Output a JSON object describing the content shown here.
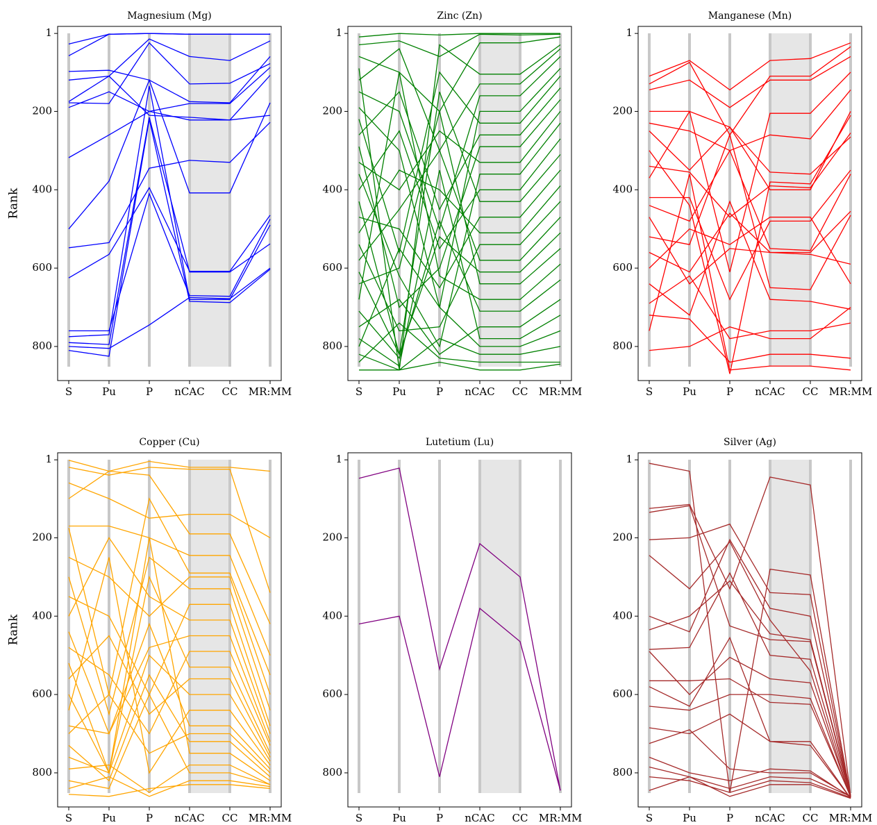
{
  "chart_data": [
    {
      "type": "parallel",
      "title": "Magnesium (Mg)",
      "y_label": "Rank",
      "color": "#0000ff",
      "inverted": true,
      "categories": [
        "S",
        "Pu",
        "P",
        "nCAC",
        "CC",
        "MR:MM"
      ],
      "ylim": [
        -17,
        887
      ],
      "yticks": [
        1,
        200,
        400,
        600,
        800
      ],
      "series": [
        {
          "values": [
            28,
            3,
            1,
            3,
            3,
            3
          ]
        },
        {
          "values": [
            58,
            3,
            1,
            3,
            3,
            3
          ]
        },
        {
          "values": [
            98,
            95,
            120,
            175,
            178,
            60
          ]
        },
        {
          "values": [
            120,
            110,
            15,
            60,
            70,
            20
          ]
        },
        {
          "values": [
            178,
            180,
            25,
            130,
            128,
            78
          ]
        },
        {
          "values": [
            190,
            150,
            200,
            180,
            180,
            88
          ]
        },
        {
          "values": [
            175,
            110,
            210,
            215,
            222,
            210
          ]
        },
        {
          "values": [
            318,
            260,
            200,
            222,
            222,
            108
          ]
        },
        {
          "values": [
            500,
            378,
            120,
            408,
            408,
            178
          ]
        },
        {
          "values": [
            548,
            535,
            345,
            325,
            330,
            228
          ]
        },
        {
          "values": [
            625,
            565,
            395,
            608,
            608,
            465
          ]
        },
        {
          "values": [
            760,
            760,
            410,
            670,
            672,
            475
          ]
        },
        {
          "values": [
            775,
            770,
            135,
            680,
            680,
            490
          ]
        },
        {
          "values": [
            790,
            795,
            215,
            610,
            610,
            538
          ]
        },
        {
          "values": [
            800,
            805,
            745,
            675,
            678,
            600
          ]
        },
        {
          "values": [
            810,
            825,
            220,
            685,
            688,
            603
          ]
        }
      ]
    },
    {
      "type": "parallel",
      "title": "Zinc (Zn)",
      "color": "#008000",
      "inverted": true,
      "categories": [
        "S",
        "Pu",
        "P",
        "nCAC",
        "CC",
        "MR:MM"
      ],
      "ylim": [
        -17,
        887
      ],
      "yticks": [
        1,
        200,
        400,
        600,
        800
      ],
      "series": [
        {
          "values": [
            10,
            1,
            5,
            1,
            1,
            1
          ]
        },
        {
          "values": [
            30,
            20,
            60,
            3,
            5,
            3
          ]
        },
        {
          "values": [
            60,
            100,
            200,
            25,
            25,
            10
          ]
        },
        {
          "values": [
            90,
            860,
            30,
            105,
            105,
            30
          ]
        },
        {
          "values": [
            120,
            40,
            300,
            130,
            130,
            40
          ]
        },
        {
          "values": [
            150,
            200,
            500,
            160,
            160,
            60
          ]
        },
        {
          "values": [
            190,
            300,
            700,
            200,
            200,
            90
          ]
        },
        {
          "values": [
            220,
            560,
            100,
            230,
            230,
            110
          ]
        },
        {
          "values": [
            260,
            150,
            450,
            260,
            260,
            140
          ]
        },
        {
          "values": [
            290,
            700,
            600,
            290,
            290,
            170
          ]
        },
        {
          "values": [
            330,
            400,
            250,
            330,
            330,
            200
          ]
        },
        {
          "values": [
            360,
            620,
            800,
            360,
            360,
            230
          ]
        },
        {
          "values": [
            400,
            250,
            550,
            400,
            400,
            270
          ]
        },
        {
          "values": [
            430,
            820,
            150,
            430,
            430,
            310
          ]
        },
        {
          "values": [
            470,
            500,
            650,
            470,
            470,
            350
          ]
        },
        {
          "values": [
            510,
            350,
            400,
            510,
            510,
            390
          ]
        },
        {
          "values": [
            540,
            760,
            750,
            540,
            540,
            430
          ]
        },
        {
          "values": [
            580,
            450,
            300,
            580,
            580,
            470
          ]
        },
        {
          "values": [
            610,
            820,
            520,
            610,
            610,
            510
          ]
        },
        {
          "values": [
            640,
            600,
            200,
            640,
            640,
            550
          ]
        },
        {
          "values": [
            680,
            100,
            620,
            680,
            680,
            590
          ]
        },
        {
          "values": [
            710,
            830,
            480,
            710,
            710,
            630
          ]
        },
        {
          "values": [
            750,
            680,
            820,
            750,
            750,
            680
          ]
        },
        {
          "values": [
            780,
            850,
            350,
            780,
            780,
            720
          ]
        },
        {
          "values": [
            800,
            550,
            700,
            800,
            800,
            760
          ]
        },
        {
          "values": [
            820,
            860,
            780,
            820,
            820,
            800
          ]
        },
        {
          "values": [
            840,
            740,
            830,
            840,
            840,
            840
          ]
        },
        {
          "values": [
            860,
            860,
            840,
            860,
            860,
            845
          ]
        }
      ]
    },
    {
      "type": "parallel",
      "title": "Manganese (Mn)",
      "color": "#ff0000",
      "inverted": true,
      "categories": [
        "S",
        "Pu",
        "P",
        "nCAC",
        "CC",
        "MR:MM"
      ],
      "ylim": [
        -17,
        887
      ],
      "yticks": [
        1,
        200,
        400,
        600,
        800
      ],
      "series": [
        {
          "values": [
            110,
            70,
            145,
            70,
            65,
            25
          ]
        },
        {
          "values": [
            130,
            75,
            260,
            110,
            110,
            35
          ]
        },
        {
          "values": [
            145,
            120,
            190,
            120,
            120,
            60
          ]
        },
        {
          "values": [
            200,
            200,
            610,
            205,
            205,
            100
          ]
        },
        {
          "values": [
            230,
            250,
            300,
            260,
            270,
            145
          ]
        },
        {
          "values": [
            250,
            350,
            240,
            400,
            400,
            200
          ]
        },
        {
          "values": [
            300,
            440,
            870,
            380,
            385,
            210
          ]
        },
        {
          "values": [
            340,
            355,
            470,
            390,
            395,
            255
          ]
        },
        {
          "values": [
            370,
            200,
            240,
            355,
            360,
            265
          ]
        },
        {
          "values": [
            420,
            420,
            680,
            480,
            480,
            350
          ]
        },
        {
          "values": [
            440,
            480,
            300,
            550,
            555,
            360
          ]
        },
        {
          "values": [
            470,
            640,
            550,
            560,
            560,
            455
          ]
        },
        {
          "values": [
            520,
            540,
            260,
            650,
            655,
            465
          ]
        },
        {
          "values": [
            560,
            610,
            460,
            560,
            565,
            590
          ]
        },
        {
          "values": [
            600,
            500,
            540,
            470,
            470,
            640
          ]
        },
        {
          "values": [
            640,
            720,
            430,
            680,
            685,
            705
          ]
        },
        {
          "values": [
            690,
            620,
            780,
            760,
            760,
            740
          ]
        },
        {
          "values": [
            720,
            730,
            840,
            820,
            820,
            830
          ]
        },
        {
          "values": [
            760,
            360,
            860,
            850,
            850,
            860
          ]
        },
        {
          "values": [
            810,
            800,
            750,
            780,
            780,
            700
          ]
        }
      ]
    },
    {
      "type": "parallel",
      "title": "Copper (Cu)",
      "y_label": "Rank",
      "color": "#ffa500",
      "inverted": true,
      "categories": [
        "S",
        "Pu",
        "P",
        "nCAC",
        "CC",
        "MR:MM"
      ],
      "ylim": [
        -17,
        887
      ],
      "yticks": [
        1,
        200,
        400,
        600,
        800
      ],
      "series": [
        {
          "values": [
            2,
            30,
            5,
            20,
            20,
            30
          ]
        },
        {
          "values": [
            20,
            40,
            20,
            25,
            25,
            340
          ]
        },
        {
          "values": [
            60,
            100,
            150,
            140,
            140,
            200
          ]
        },
        {
          "values": [
            100,
            30,
            40,
            190,
            190,
            420
          ]
        },
        {
          "values": [
            170,
            170,
            200,
            245,
            245,
            500
          ]
        },
        {
          "values": [
            175,
            600,
            100,
            290,
            290,
            550
          ]
        },
        {
          "values": [
            250,
            300,
            400,
            300,
            300,
            600
          ]
        },
        {
          "values": [
            300,
            650,
            250,
            330,
            330,
            640
          ]
        },
        {
          "values": [
            350,
            400,
            600,
            370,
            370,
            680
          ]
        },
        {
          "values": [
            400,
            200,
            350,
            410,
            410,
            700
          ]
        },
        {
          "values": [
            440,
            700,
            480,
            450,
            450,
            720
          ]
        },
        {
          "values": [
            480,
            550,
            700,
            490,
            490,
            730
          ]
        },
        {
          "values": [
            520,
            800,
            300,
            530,
            530,
            750
          ]
        },
        {
          "values": [
            560,
            450,
            650,
            560,
            560,
            760
          ]
        },
        {
          "values": [
            600,
            800,
            500,
            600,
            600,
            770
          ]
        },
        {
          "values": [
            640,
            250,
            800,
            640,
            640,
            780
          ]
        },
        {
          "values": [
            680,
            700,
            420,
            680,
            680,
            790
          ]
        },
        {
          "values": [
            700,
            600,
            750,
            700,
            700,
            800
          ]
        },
        {
          "values": [
            730,
            820,
            550,
            720,
            720,
            810
          ]
        },
        {
          "values": [
            760,
            800,
            200,
            750,
            750,
            820
          ]
        },
        {
          "values": [
            790,
            780,
            850,
            780,
            780,
            830
          ]
        },
        {
          "values": [
            820,
            840,
            600,
            800,
            800,
            830
          ]
        },
        {
          "values": [
            840,
            810,
            860,
            820,
            820,
            835
          ]
        },
        {
          "values": [
            855,
            860,
            840,
            830,
            830,
            840
          ]
        }
      ]
    },
    {
      "type": "parallel",
      "title": "Lutetium (Lu)",
      "color": "#800080",
      "inverted": true,
      "categories": [
        "S",
        "Pu",
        "P",
        "nCAC",
        "CC",
        "MR:MM"
      ],
      "ylim": [
        -17,
        887
      ],
      "yticks": [
        1,
        200,
        400,
        600,
        800
      ],
      "series": [
        {
          "values": [
            48,
            22,
            535,
            215,
            300,
            845
          ]
        },
        {
          "values": [
            420,
            400,
            810,
            380,
            465,
            845
          ]
        }
      ]
    },
    {
      "type": "parallel",
      "title": "Silver (Ag)",
      "color": "#a52a2a",
      "inverted": true,
      "categories": [
        "S",
        "Pu",
        "P",
        "nCAC",
        "CC",
        "MR:MM"
      ],
      "ylim": [
        -17,
        887
      ],
      "yticks": [
        1,
        200,
        400,
        600,
        800
      ],
      "series": [
        {
          "values": [
            10,
            30,
            850,
            280,
            295,
            860
          ]
        },
        {
          "values": [
            125,
            115,
            330,
            45,
            65,
            858
          ]
        },
        {
          "values": [
            135,
            118,
            425,
            460,
            465,
            860
          ]
        },
        {
          "values": [
            205,
            200,
            165,
            340,
            345,
            862
          ]
        },
        {
          "values": [
            245,
            330,
            210,
            410,
            540,
            865
          ]
        },
        {
          "values": [
            400,
            440,
            205,
            380,
            400,
            862
          ]
        },
        {
          "values": [
            435,
            400,
            310,
            445,
            460,
            858
          ]
        },
        {
          "values": [
            485,
            480,
            290,
            500,
            510,
            860
          ]
        },
        {
          "values": [
            490,
            600,
            505,
            560,
            570,
            862
          ]
        },
        {
          "values": [
            565,
            565,
            560,
            620,
            625,
            860
          ]
        },
        {
          "values": [
            580,
            630,
            455,
            720,
            720,
            865
          ]
        },
        {
          "values": [
            630,
            640,
            600,
            600,
            610,
            862
          ]
        },
        {
          "values": [
            685,
            700,
            650,
            720,
            730,
            865
          ]
        },
        {
          "values": [
            725,
            690,
            790,
            800,
            800,
            860
          ]
        },
        {
          "values": [
            760,
            800,
            820,
            790,
            795,
            862
          ]
        },
        {
          "values": [
            785,
            810,
            840,
            810,
            815,
            860
          ]
        },
        {
          "values": [
            810,
            820,
            850,
            820,
            825,
            863
          ]
        },
        {
          "values": [
            845,
            810,
            860,
            830,
            830,
            865
          ]
        }
      ]
    }
  ]
}
